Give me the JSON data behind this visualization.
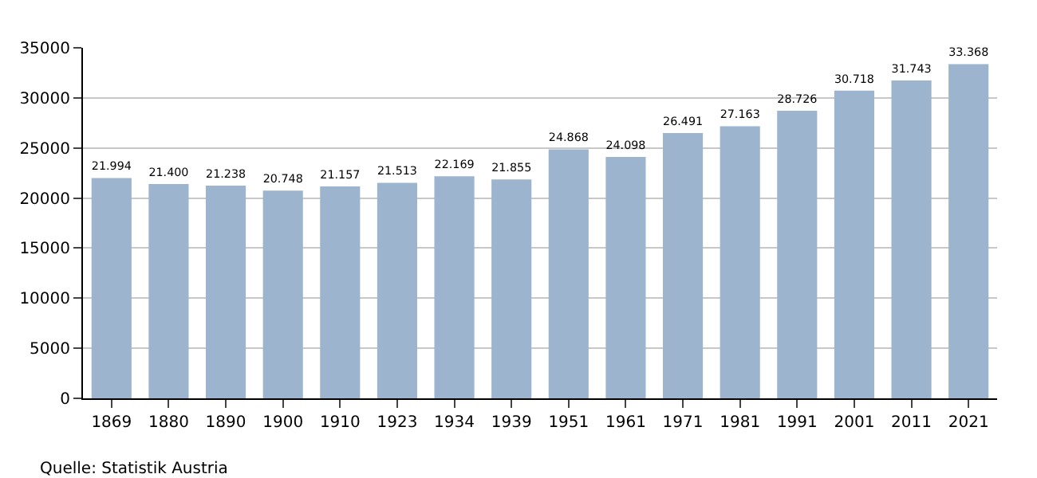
{
  "chart_data": {
    "type": "bar",
    "categories": [
      "1869",
      "1880",
      "1890",
      "1900",
      "1910",
      "1923",
      "1934",
      "1939",
      "1951",
      "1961",
      "1971",
      "1981",
      "1991",
      "2001",
      "2011",
      "2021"
    ],
    "values": [
      21994,
      21400,
      21238,
      20748,
      21157,
      21513,
      22169,
      21855,
      24868,
      24098,
      26491,
      27163,
      28726,
      30718,
      31743,
      33368
    ],
    "value_labels": [
      "21.994",
      "21.400",
      "21.238",
      "20.748",
      "21.157",
      "21.513",
      "22.169",
      "21.855",
      "24.868",
      "24.098",
      "26.491",
      "27.163",
      "28.726",
      "30.718",
      "31.743",
      "33.368"
    ],
    "color": "#9db4cf",
    "ylim": [
      0,
      35000
    ],
    "yticks": [
      0,
      5000,
      10000,
      15000,
      20000,
      25000,
      30000,
      35000
    ],
    "grid": "y",
    "annotations": [
      "Quelle: Statistik Austria"
    ]
  }
}
